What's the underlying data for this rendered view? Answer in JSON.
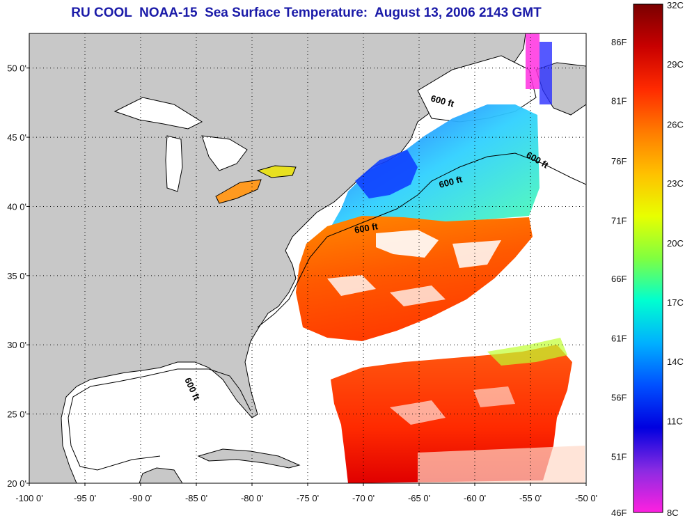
{
  "title": "RU COOL  NOAA-15  Sea Surface Temperature:  August 13, 2006 2143 GMT",
  "map": {
    "lon_range": [
      -100,
      -50
    ],
    "lat_range": [
      20,
      52.5
    ],
    "lon_ticks": [
      "-100 0'",
      "-95 0'",
      "-90 0'",
      "-85 0'",
      "-80 0'",
      "-75 0'",
      "-70 0'",
      "-65 0'",
      "-60 0'",
      "-55 0'",
      "-50 0'"
    ],
    "lat_ticks": [
      "20 0'",
      "25 0'",
      "30 0'",
      "35 0'",
      "40 0'",
      "45 0'",
      "50 0'"
    ],
    "grid": true,
    "land_color": "#c8c8c8",
    "ocean_color": "#ffffff",
    "contour_label": "600 ft"
  },
  "colorbar": {
    "fahrenheit_labels": [
      "86F",
      "81F",
      "76F",
      "71F",
      "66F",
      "61F",
      "56F",
      "51F",
      "46F"
    ],
    "celsius_labels": [
      "32C",
      "29C",
      "26C",
      "23C",
      "20C",
      "17C",
      "14C",
      "11C",
      "8C"
    ],
    "colors": [
      "#7a0000",
      "#c80000",
      "#ff2a00",
      "#ff7a00",
      "#ffc000",
      "#e8ff00",
      "#80ff40",
      "#00ffd0",
      "#00b0ff",
      "#0050ff",
      "#0000e0",
      "#8a2be2",
      "#ff20e0"
    ]
  }
}
